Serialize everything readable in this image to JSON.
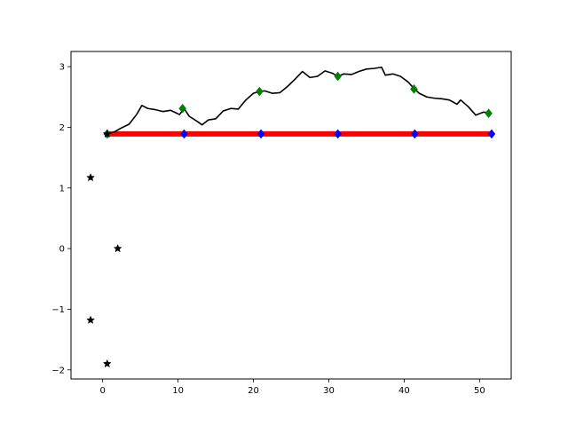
{
  "chart_data": {
    "type": "line",
    "title": "",
    "xlabel": "",
    "ylabel": "",
    "xlim": [
      -4.2,
      54.2
    ],
    "ylim": [
      -2.15,
      3.25
    ],
    "grid": false,
    "x_ticks": [
      {
        "value": 0,
        "label": "0"
      },
      {
        "value": 10,
        "label": "10"
      },
      {
        "value": 20,
        "label": "20"
      },
      {
        "value": 30,
        "label": "30"
      },
      {
        "value": 40,
        "label": "40"
      },
      {
        "value": 50,
        "label": "50"
      }
    ],
    "y_ticks": [
      {
        "value": -2,
        "label": "−2"
      },
      {
        "value": -1,
        "label": "−1"
      },
      {
        "value": 0,
        "label": "0"
      },
      {
        "value": 1,
        "label": "1"
      },
      {
        "value": 2,
        "label": "2"
      },
      {
        "value": 3,
        "label": "3"
      }
    ],
    "series": [
      {
        "type": "line",
        "color": "#ff0000",
        "points": [
          [
            0.6,
            1.89
          ],
          [
            51.6,
            1.89
          ]
        ]
      },
      {
        "type": "line",
        "color": "#000000",
        "points": [
          [
            0.6,
            1.89
          ],
          [
            1.5,
            1.92
          ],
          [
            2.5,
            1.99
          ],
          [
            3.5,
            2.05
          ],
          [
            4.5,
            2.21
          ],
          [
            5.2,
            2.36
          ],
          [
            6.0,
            2.31
          ],
          [
            7.0,
            2.29
          ],
          [
            8.0,
            2.26
          ],
          [
            9.0,
            2.28
          ],
          [
            10.2,
            2.21
          ],
          [
            10.8,
            2.31
          ],
          [
            11.5,
            2.18
          ],
          [
            12.5,
            2.1
          ],
          [
            13.2,
            2.04
          ],
          [
            14.0,
            2.12
          ],
          [
            15.0,
            2.14
          ],
          [
            16.0,
            2.27
          ],
          [
            17.0,
            2.31
          ],
          [
            18.0,
            2.3
          ],
          [
            19.0,
            2.45
          ],
          [
            20.0,
            2.56
          ],
          [
            20.8,
            2.59
          ],
          [
            21.5,
            2.6
          ],
          [
            22.5,
            2.56
          ],
          [
            23.5,
            2.57
          ],
          [
            24.5,
            2.67
          ],
          [
            25.5,
            2.79
          ],
          [
            26.5,
            2.92
          ],
          [
            27.5,
            2.82
          ],
          [
            28.5,
            2.84
          ],
          [
            29.5,
            2.93
          ],
          [
            30.5,
            2.89
          ],
          [
            31.2,
            2.84
          ],
          [
            32.0,
            2.88
          ],
          [
            33.0,
            2.87
          ],
          [
            34.0,
            2.92
          ],
          [
            35.0,
            2.96
          ],
          [
            36.0,
            2.97
          ],
          [
            37.0,
            2.99
          ],
          [
            37.5,
            2.86
          ],
          [
            38.5,
            2.88
          ],
          [
            39.5,
            2.84
          ],
          [
            40.5,
            2.75
          ],
          [
            41.3,
            2.64
          ],
          [
            42.0,
            2.56
          ],
          [
            43.0,
            2.5
          ],
          [
            44.0,
            2.48
          ],
          [
            45.0,
            2.47
          ],
          [
            46.0,
            2.45
          ],
          [
            47.0,
            2.38
          ],
          [
            47.5,
            2.45
          ],
          [
            48.5,
            2.34
          ],
          [
            49.5,
            2.2
          ],
          [
            50.5,
            2.25
          ],
          [
            51.2,
            2.24
          ]
        ]
      },
      {
        "type": "scatter",
        "marker": "diamond",
        "color": "#0000ff",
        "points": [
          [
            0.6,
            1.89
          ],
          [
            10.8,
            1.89
          ],
          [
            21.0,
            1.89
          ],
          [
            31.2,
            1.89
          ],
          [
            41.4,
            1.89
          ],
          [
            51.6,
            1.89
          ]
        ]
      },
      {
        "type": "scatter",
        "marker": "diamond",
        "color": "#008000",
        "points": [
          [
            0.6,
            1.89
          ],
          [
            10.6,
            2.31
          ],
          [
            20.8,
            2.59
          ],
          [
            31.2,
            2.84
          ],
          [
            41.3,
            2.63
          ],
          [
            51.2,
            2.23
          ]
        ]
      },
      {
        "type": "scatter",
        "marker": "star",
        "color": "#000000",
        "points": [
          [
            -1.6,
            1.17
          ],
          [
            2.0,
            0.0
          ],
          [
            -1.6,
            -1.18
          ],
          [
            0.6,
            -1.9
          ],
          [
            0.6,
            1.89
          ]
        ]
      }
    ]
  }
}
